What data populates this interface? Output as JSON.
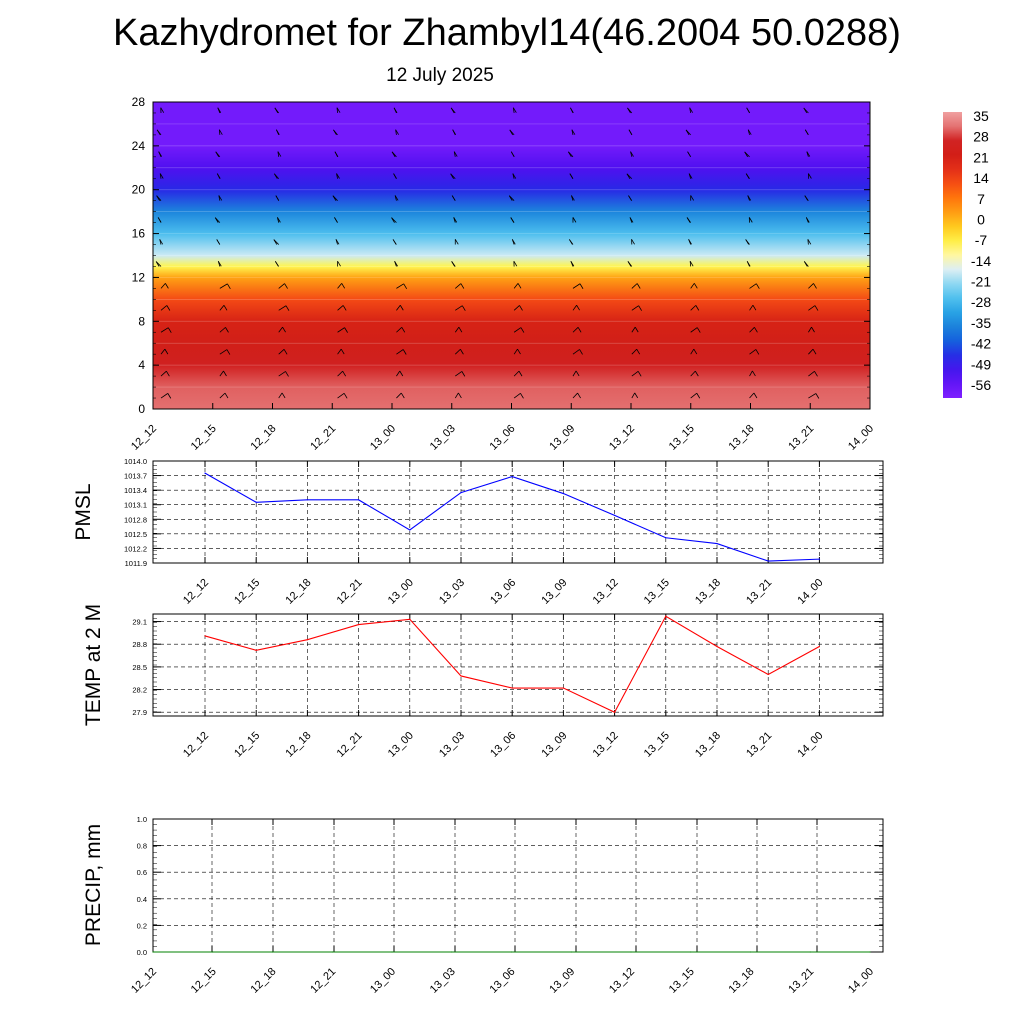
{
  "header": {
    "title": "Kazhydromet for Zhambyl14(46.2004 50.0288)",
    "date": "12 July 2025"
  },
  "chart_data": [
    {
      "type": "heatmap",
      "description_role": "vertical temperature cross-section with wind barbs",
      "y_ticks": [
        0,
        4,
        8,
        12,
        16,
        20,
        24,
        28
      ],
      "ylim": [
        0,
        28
      ],
      "x_ticks": [
        "12_12",
        "12_15",
        "12_18",
        "12_21",
        "13_00",
        "13_03",
        "13_06",
        "13_09",
        "13_12",
        "13_15",
        "13_18",
        "13_21",
        "14_00"
      ],
      "colorbar": {
        "labels": [
          "35",
          "28",
          "21",
          "14",
          "7",
          "0",
          "-7",
          "-14",
          "-21",
          "-28",
          "-35",
          "-42",
          "-49",
          "-56"
        ],
        "range": [
          -60,
          38
        ]
      },
      "level_temperatures": [
        {
          "level": 0,
          "value": 33
        },
        {
          "level": 2,
          "value": 32
        },
        {
          "level": 4,
          "value": 28
        },
        {
          "level": 6,
          "value": 24
        },
        {
          "level": 8,
          "value": 21
        },
        {
          "level": 10,
          "value": 14
        },
        {
          "level": 12,
          "value": 3
        },
        {
          "level": 13,
          "value": -7
        },
        {
          "level": 14,
          "value": -17
        },
        {
          "level": 16,
          "value": -26
        },
        {
          "level": 18,
          "value": -35
        },
        {
          "level": 20,
          "value": -46
        },
        {
          "level": 22,
          "value": -52
        },
        {
          "level": 24,
          "value": -58
        },
        {
          "level": 26,
          "value": -58
        },
        {
          "level": 28,
          "value": -58
        }
      ]
    },
    {
      "type": "line",
      "ylabel": "PMSL",
      "categories": [
        "12_12",
        "12_15",
        "12_18",
        "12_21",
        "13_00",
        "13_03",
        "13_06",
        "13_09",
        "13_12",
        "13_15",
        "13_18",
        "13_21",
        "14_00"
      ],
      "series": [
        {
          "values": [
            1013.75,
            1013.15,
            1013.2,
            1013.2,
            1012.58,
            1013.35,
            1013.68,
            1013.33,
            1012.88,
            1012.42,
            1012.3,
            1011.94,
            1011.98
          ]
        }
      ],
      "y_ticks": [
        "1014.0",
        "1013.7",
        "1013.4",
        "1013.1",
        "1012.8",
        "1012.5",
        "1012.2",
        "1011.9"
      ],
      "ylim": [
        1011.9,
        1014.0
      ],
      "color": "#0000ff"
    },
    {
      "type": "line",
      "ylabel": "TEMP at 2 M",
      "categories": [
        "12_12",
        "12_15",
        "12_18",
        "12_21",
        "13_00",
        "13_03",
        "13_06",
        "13_09",
        "13_12",
        "13_15",
        "13_18",
        "13_21",
        "14_00"
      ],
      "series": [
        {
          "values": [
            28.91,
            28.72,
            28.86,
            29.06,
            29.13,
            28.38,
            28.22,
            28.22,
            27.9,
            29.17,
            28.77,
            28.4,
            28.77
          ]
        }
      ],
      "y_ticks": [
        "29.1",
        "28.8",
        "28.5",
        "28.2",
        "27.9"
      ],
      "ylim": [
        27.85,
        29.2
      ],
      "color": "#ff0000"
    },
    {
      "type": "line",
      "ylabel": "PRECIP, mm",
      "categories": [
        "12_12",
        "12_15",
        "12_18",
        "12_21",
        "13_00",
        "13_03",
        "13_06",
        "13_09",
        "13_12",
        "13_15",
        "13_18",
        "13_21",
        "14_00"
      ],
      "series": [
        {
          "values": [
            0,
            0,
            0,
            0,
            0,
            0,
            0,
            0,
            0,
            0,
            0,
            0,
            0
          ]
        }
      ],
      "y_ticks": [
        "1.0",
        "0.8",
        "0.6",
        "0.4",
        "0.2",
        "0.0"
      ],
      "ylim": [
        0,
        1.0
      ],
      "color": "#008000"
    }
  ]
}
